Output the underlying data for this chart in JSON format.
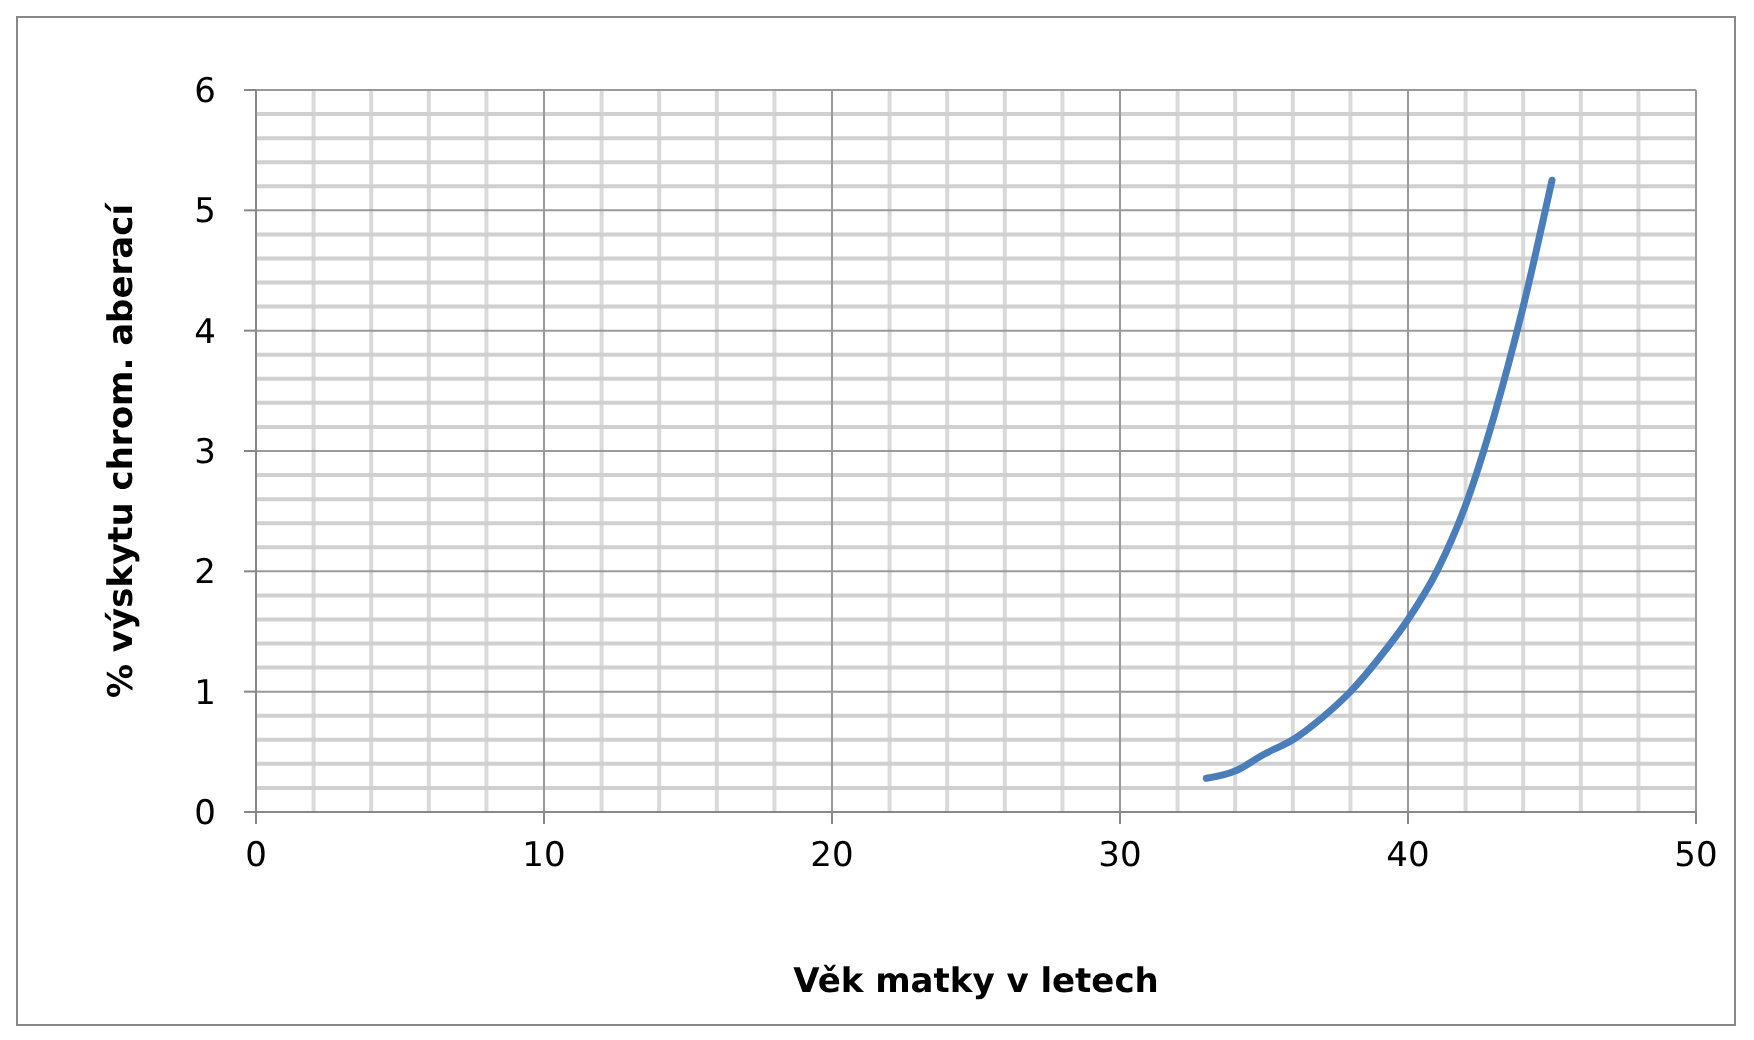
{
  "chart_data": {
    "type": "line",
    "xlabel": "Věk matky v letech",
    "ylabel": "% výskytu chrom. aberací",
    "x": [
      33,
      34,
      35,
      36,
      37,
      38,
      39,
      40,
      41,
      42,
      43,
      44,
      45
    ],
    "series": [
      {
        "color": "#4a7ebb",
        "values": [
          0.28,
          0.34,
          0.48,
          0.6,
          0.78,
          1.0,
          1.28,
          1.6,
          2.0,
          2.55,
          3.3,
          4.2,
          5.25
        ]
      }
    ],
    "xlim": [
      0,
      50
    ],
    "xticks": [
      0,
      10,
      20,
      30,
      40,
      50
    ],
    "ylim": [
      0,
      6
    ],
    "yticks": [
      0,
      1,
      2,
      3,
      4,
      5,
      6
    ],
    "grid": true,
    "marker": "none",
    "line_style": "solid"
  }
}
